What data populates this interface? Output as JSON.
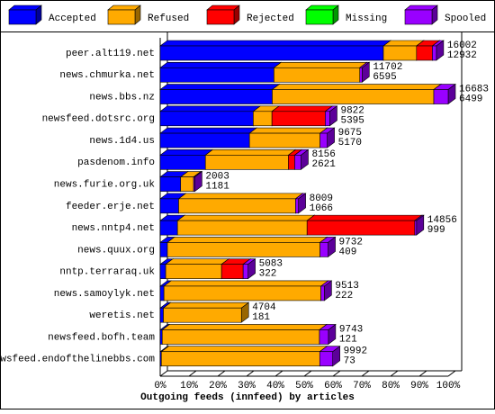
{
  "chart_data": {
    "type": "stacked-bar-3d",
    "x_label": "Outgoing feeds (innfeed) by articles",
    "categories": [
      "peer.alt119.net",
      "news.chmurka.net",
      "news.bbs.nz",
      "newsfeed.dotsrc.org",
      "news.1d4.us",
      "pasdenom.info",
      "news.furie.org.uk",
      "feeder.erje.net",
      "news.nntp4.net",
      "news.quux.org",
      "nntp.terraraq.uk",
      "news.samoylyk.net",
      "weretis.net",
      "newsfeed.bofh.team",
      "newsfeed.endofthelinebbs.com"
    ],
    "series": [
      {
        "name": "Accepted",
        "color": "#0000ff",
        "values": [
          77.5,
          39.5,
          38.9,
          32.3,
          31,
          15.7,
          7.1,
          6.4,
          6,
          2.5,
          1.9,
          1.3,
          1.1,
          0.7,
          0.4
        ]
      },
      {
        "name": "Refused",
        "color": "#ffaa00",
        "values": [
          11.5,
          29.8,
          56.1,
          6.5,
          24.5,
          28.8,
          4.5,
          40.6,
          45,
          53,
          19.4,
          54.5,
          27.1,
          54.6,
          55
        ]
      },
      {
        "name": "Rejected",
        "color": "#ff0000",
        "values": [
          5.5,
          0,
          0,
          18.5,
          0,
          2.2,
          0,
          0,
          37.4,
          0,
          7.5,
          0,
          0,
          0,
          0
        ]
      },
      {
        "name": "Missing",
        "color": "#00ff00",
        "values": [
          0,
          0,
          0,
          0,
          0,
          0,
          0,
          0,
          0,
          0,
          0,
          0,
          0,
          0,
          0
        ]
      },
      {
        "name": "Spooled",
        "color": "#9900ff",
        "values": [
          1.4,
          0.8,
          5,
          1.6,
          2.5,
          2.2,
          0.4,
          1,
          0.6,
          2.8,
          1.7,
          1.2,
          0,
          3.1,
          4.5
        ]
      }
    ],
    "bar_labels": [
      [
        16002,
        12932
      ],
      [
        11702,
        6595
      ],
      [
        16683,
        6499
      ],
      [
        9822,
        5395
      ],
      [
        9675,
        5170
      ],
      [
        8156,
        2621
      ],
      [
        2003,
        1181
      ],
      [
        8009,
        1066
      ],
      [
        14856,
        999
      ],
      [
        9732,
        409
      ],
      [
        5083,
        322
      ],
      [
        9513,
        222
      ],
      [
        4704,
        181
      ],
      [
        9743,
        121
      ],
      [
        9992,
        73
      ]
    ],
    "xlim": [
      0,
      100
    ],
    "xticks": [
      {
        "value": 0,
        "label": "0%"
      },
      {
        "value": 10,
        "label": "10%"
      },
      {
        "value": 20,
        "label": "20%"
      },
      {
        "value": 30,
        "label": "30%"
      },
      {
        "value": 40,
        "label": "40%"
      },
      {
        "value": 50,
        "label": "50%"
      },
      {
        "value": 60,
        "label": "60%"
      },
      {
        "value": 70,
        "label": "70%"
      },
      {
        "value": 80,
        "label": "80%"
      },
      {
        "value": 90,
        "label": "90%"
      },
      {
        "value": 100,
        "label": "100%"
      }
    ]
  }
}
